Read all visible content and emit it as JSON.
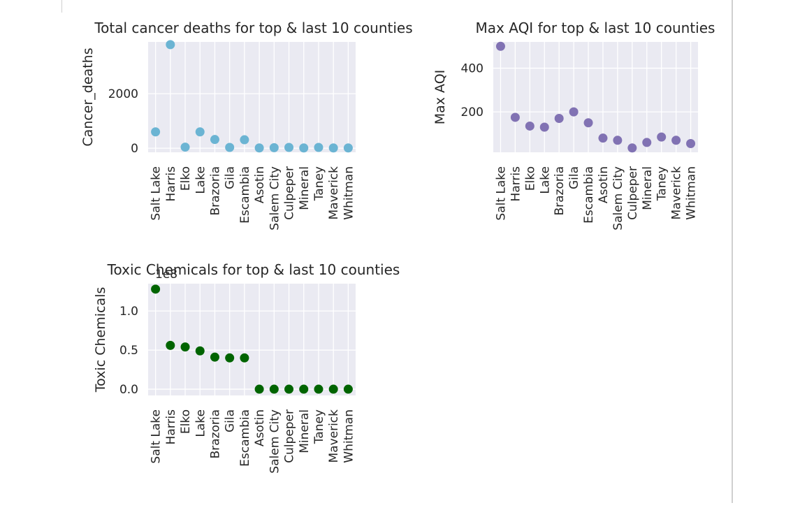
{
  "chart_data": [
    {
      "type": "scatter",
      "title": "Total cancer deaths for top & last 10 counties",
      "xlabel": "",
      "ylabel": "Cancer_deaths",
      "categories": [
        "Salt Lake",
        "Harris",
        "Elko",
        "Lake",
        "Brazoria",
        "Gila",
        "Escambia",
        "Asotin",
        "Salem City",
        "Culpeper",
        "Mineral",
        "Taney",
        "Maverick",
        "Whitman"
      ],
      "values": [
        600,
        3800,
        40,
        600,
        320,
        30,
        310,
        10,
        20,
        30,
        10,
        30,
        10,
        10
      ],
      "yticks": [
        0,
        2000
      ],
      "ylim": [
        -150,
        3900
      ],
      "offset_label": "",
      "color": "#6bb4d3",
      "grid": true
    },
    {
      "type": "scatter",
      "title": "Max AQI for top & last 10 counties",
      "xlabel": "",
      "ylabel": "Max AQI",
      "categories": [
        "Salt Lake",
        "Harris",
        "Elko",
        "Lake",
        "Brazoria",
        "Gila",
        "Escambia",
        "Asotin",
        "Salem City",
        "Culpeper",
        "Mineral",
        "Taney",
        "Maverick",
        "Whitman"
      ],
      "values": [
        500,
        175,
        135,
        130,
        170,
        200,
        150,
        80,
        70,
        35,
        60,
        85,
        70,
        55
      ],
      "yticks": [
        200,
        400
      ],
      "ylim": [
        15,
        520
      ],
      "offset_label": "",
      "color": "#8172b3",
      "grid": true
    },
    {
      "type": "scatter",
      "title": "Toxic Chemicals for top & last 10 counties",
      "xlabel": "",
      "ylabel": "Toxic Chemicals",
      "categories": [
        "Salt Lake",
        "Harris",
        "Elko",
        "Lake",
        "Brazoria",
        "Gila",
        "Escambia",
        "Asotin",
        "Salem City",
        "Culpeper",
        "Mineral",
        "Taney",
        "Maverick",
        "Whitman"
      ],
      "values": [
        1.28,
        0.56,
        0.54,
        0.49,
        0.41,
        0.4,
        0.4,
        0.0,
        0.0,
        0.0,
        0.0,
        0.0,
        0.0,
        0.0
      ],
      "yticks": [
        0.0,
        0.5,
        1.0
      ],
      "ylim": [
        -0.08,
        1.35
      ],
      "offset_label": "1e8",
      "color": "#006400",
      "grid": true
    }
  ]
}
